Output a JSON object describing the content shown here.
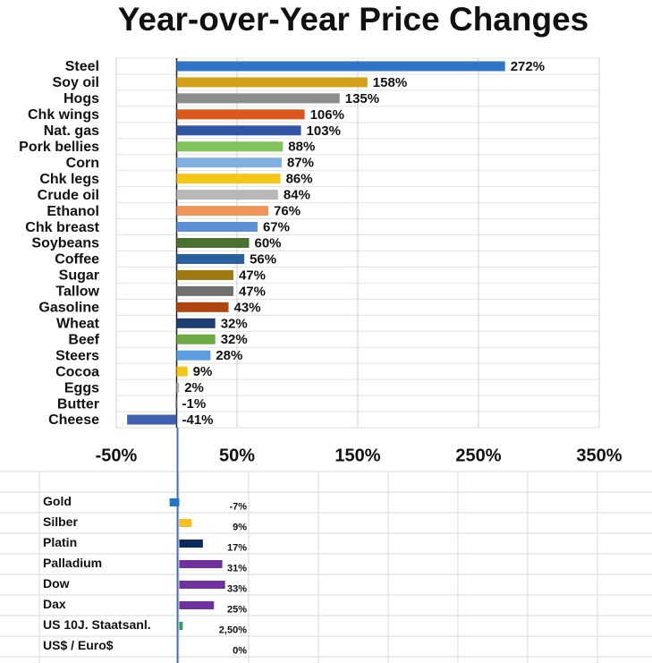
{
  "chart_data": [
    {
      "type": "bar",
      "title": "Year-over-Year Price Changes",
      "categories": [
        "Steel",
        "Soy oil",
        "Hogs",
        "Chk wings",
        "Nat. gas",
        "Pork bellies",
        "Corn",
        "Chk legs",
        "Crude oil",
        "Ethanol",
        "Chk breast",
        "Soybeans",
        "Coffee",
        "Sugar",
        "Tallow",
        "Gasoline",
        "Wheat",
        "Beef",
        "Steers",
        "Cocoa",
        "Eggs",
        "Butter",
        "Cheese"
      ],
      "values": [
        272,
        158,
        135,
        106,
        103,
        88,
        87,
        86,
        84,
        76,
        67,
        60,
        56,
        47,
        47,
        43,
        32,
        32,
        28,
        9,
        2,
        -1,
        -41
      ],
      "value_labels": [
        "272%",
        "158%",
        "135%",
        "106%",
        "103%",
        "88%",
        "87%",
        "86%",
        "84%",
        "76%",
        "67%",
        "60%",
        "56%",
        "47%",
        "47%",
        "43%",
        "32%",
        "32%",
        "28%",
        "9%",
        "2%",
        "-1%",
        "-41%"
      ],
      "colors": [
        "#2e75c7",
        "#d4a017",
        "#8c8c8c",
        "#d9581a",
        "#2f55a4",
        "#7fc45a",
        "#7fb0e0",
        "#f5c518",
        "#b8b8b8",
        "#f0955a",
        "#5b8fd6",
        "#4a7030",
        "#2a5f9e",
        "#a07a10",
        "#707070",
        "#b0440f",
        "#1f3f73",
        "#6aaa40",
        "#5b9ee0",
        "#f5c518",
        "#b0b0b0",
        "#8f8f8f",
        "#3f62b0"
      ],
      "xlim": [
        -50,
        350
      ],
      "xticks": [
        {
          "value": -50,
          "label": "-50%"
        },
        {
          "value": 50,
          "label": "50%"
        },
        {
          "value": 150,
          "label": "150%"
        },
        {
          "value": 250,
          "label": "250%"
        },
        {
          "value": 350,
          "label": "350%"
        }
      ],
      "grid": true
    },
    {
      "type": "bar",
      "categories": [
        "Gold",
        "Silber",
        "Platin",
        "Palladium",
        "Dow",
        "Dax",
        "US 10J. Staatsanl.",
        "US$ / Euro$"
      ],
      "values": [
        -7,
        9,
        17,
        31,
        33,
        25,
        2.5,
        0
      ],
      "value_labels": [
        "-7%",
        "9%",
        "17%",
        "31%",
        "33%",
        "25%",
        "2,50%",
        "0%"
      ],
      "colors": [
        "#1f77c4",
        "#f5c020",
        "#0d2a5c",
        "#7030a0",
        "#7030a0",
        "#7030a0",
        "#2ca05a",
        "#7030a0"
      ],
      "xlim": [
        -10,
        50
      ]
    }
  ]
}
